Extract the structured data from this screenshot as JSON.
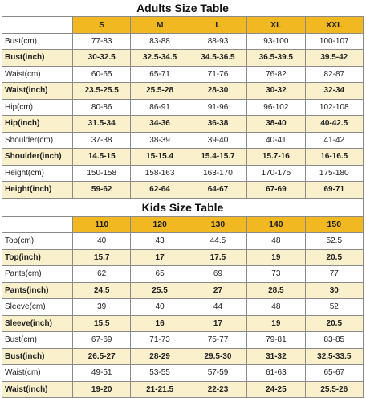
{
  "adults": {
    "title": "Adults Size Table",
    "sizes": [
      "S",
      "M",
      "L",
      "XL",
      "XXL"
    ],
    "rows": [
      {
        "label": "Bust(cm)",
        "values": [
          "77-83",
          "83-88",
          "88-93",
          "93-100",
          "100-107"
        ],
        "highlight": false
      },
      {
        "label": "Bust(inch)",
        "values": [
          "30-32.5",
          "32.5-34.5",
          "34.5-36.5",
          "36.5-39.5",
          "39.5-42"
        ],
        "highlight": true
      },
      {
        "label": "Waist(cm)",
        "values": [
          "60-65",
          "65-71",
          "71-76",
          "76-82",
          "82-87"
        ],
        "highlight": false
      },
      {
        "label": "Waist(inch)",
        "values": [
          "23.5-25.5",
          "25.5-28",
          "28-30",
          "30-32",
          "32-34"
        ],
        "highlight": true
      },
      {
        "label": "Hip(cm)",
        "values": [
          "80-86",
          "86-91",
          "91-96",
          "96-102",
          "102-108"
        ],
        "highlight": false
      },
      {
        "label": "Hip(inch)",
        "values": [
          "31.5-34",
          "34-36",
          "36-38",
          "38-40",
          "40-42.5"
        ],
        "highlight": true
      },
      {
        "label": "Shoulder(cm)",
        "values": [
          "37-38",
          "38-39",
          "39-40",
          "40-41",
          "41-42"
        ],
        "highlight": false
      },
      {
        "label": "Shoulder(inch)",
        "values": [
          "14.5-15",
          "15-15.4",
          "15.4-15.7",
          "15.7-16",
          "16-16.5"
        ],
        "highlight": true
      },
      {
        "label": "Height(cm)",
        "values": [
          "150-158",
          "158-163",
          "163-170",
          "170-175",
          "175-180"
        ],
        "highlight": false
      },
      {
        "label": "Height(inch)",
        "values": [
          "59-62",
          "62-64",
          "64-67",
          "67-69",
          "69-71"
        ],
        "highlight": true
      }
    ]
  },
  "kids": {
    "title": "Kids Size Table",
    "sizes": [
      "110",
      "120",
      "130",
      "140",
      "150"
    ],
    "rows": [
      {
        "label": "Top(cm)",
        "values": [
          "40",
          "43",
          "44.5",
          "48",
          "52.5"
        ],
        "highlight": false
      },
      {
        "label": "Top(inch)",
        "values": [
          "15.7",
          "17",
          "17.5",
          "19",
          "20.5"
        ],
        "highlight": true
      },
      {
        "label": "Pants(cm)",
        "values": [
          "62",
          "65",
          "69",
          "73",
          "77"
        ],
        "highlight": false
      },
      {
        "label": "Pants(inch)",
        "values": [
          "24.5",
          "25.5",
          "27",
          "28.5",
          "30"
        ],
        "highlight": true
      },
      {
        "label": "Sleeve(cm)",
        "values": [
          "39",
          "40",
          "44",
          "48",
          "52"
        ],
        "highlight": false
      },
      {
        "label": "Sleeve(inch)",
        "values": [
          "15.5",
          "16",
          "17",
          "19",
          "20.5"
        ],
        "highlight": true
      },
      {
        "label": "Bust(cm)",
        "values": [
          "67-69",
          "71-73",
          "75-77",
          "79-81",
          "83-85"
        ],
        "highlight": false
      },
      {
        "label": "Bust(inch)",
        "values": [
          "26.5-27",
          "28-29",
          "29.5-30",
          "31-32",
          "32.5-33.5"
        ],
        "highlight": true
      },
      {
        "label": "Waist(cm)",
        "values": [
          "49-51",
          "53-55",
          "57-59",
          "61-63",
          "65-67"
        ],
        "highlight": false
      },
      {
        "label": "Waist(inch)",
        "values": [
          "19-20",
          "21-21.5",
          "22-23",
          "24-25",
          "25.5-26"
        ],
        "highlight": true
      }
    ]
  },
  "colors": {
    "header": "#f2b822",
    "alt_row": "#fbf0cc",
    "border": "#8a8a8a"
  }
}
